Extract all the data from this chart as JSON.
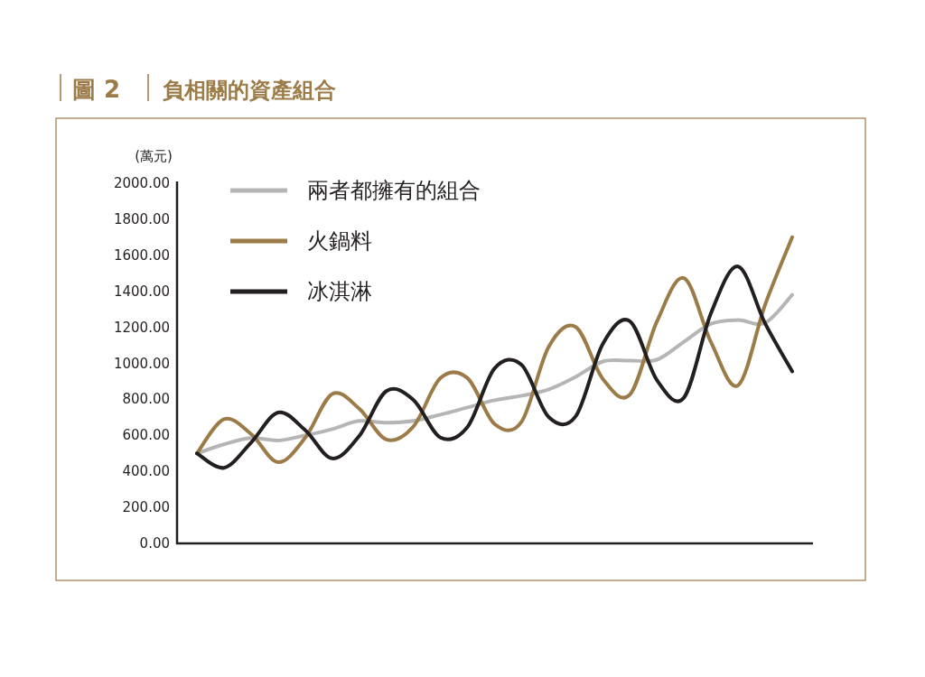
{
  "chart_data": {
    "type": "line",
    "title": "圖 2",
    "subtitle": "負相關的資產組合",
    "ylabel": "(萬元)",
    "categories": [
      null,
      null,
      null,
      null,
      null,
      null,
      null,
      null,
      null,
      null,
      null,
      null,
      null,
      null,
      null,
      null,
      null,
      null,
      null,
      null,
      null,
      null,
      null
    ],
    "series": [
      {
        "name": "兩者都擁有的組合",
        "color": "#b5b5b5",
        "values": [
          500,
          550,
          585,
          572,
          600,
          635,
          680,
          670,
          680,
          715,
          755,
          795,
          820,
          855,
          925,
          1010,
          1015,
          1020,
          1120,
          1220,
          1240,
          1225,
          1380
        ]
      },
      {
        "name": "火鍋料",
        "color": "#9b7b47",
        "values": [
          500,
          690,
          608,
          451,
          586,
          830,
          748,
          577,
          649,
          918,
          918,
          663,
          676,
          1092,
          1202,
          914,
          826,
          1232,
          1473,
          1117,
          878,
          1326,
          1700
        ]
      },
      {
        "name": "冰淇淋",
        "color": "#231f20",
        "values": [
          500,
          420,
          560,
          727,
          629,
          472,
          597,
          846,
          797,
          588,
          647,
          972,
          991,
          702,
          706,
          1108,
          1234,
          907,
          810,
          1279,
          1538,
          1221,
          955
        ]
      }
    ],
    "ylim": [
      0,
      2000
    ],
    "yticks": [
      {
        "value": 0,
        "label": "0.00"
      },
      {
        "value": 200,
        "label": "200.00"
      },
      {
        "value": 400,
        "label": "400.00"
      },
      {
        "value": 600,
        "label": "600.00"
      },
      {
        "value": 800,
        "label": "800.00"
      },
      {
        "value": 1000,
        "label": "1000.00"
      },
      {
        "value": 1200,
        "label": "1200.00"
      },
      {
        "value": 1400,
        "label": "1400.00"
      },
      {
        "value": 1600,
        "label": "1600.00"
      },
      {
        "value": 1800,
        "label": "1800.00"
      },
      {
        "value": 2000,
        "label": "2000.00"
      }
    ],
    "tick_labels": "y",
    "grid": false,
    "legend": "top left",
    "line_style": "solid"
  }
}
